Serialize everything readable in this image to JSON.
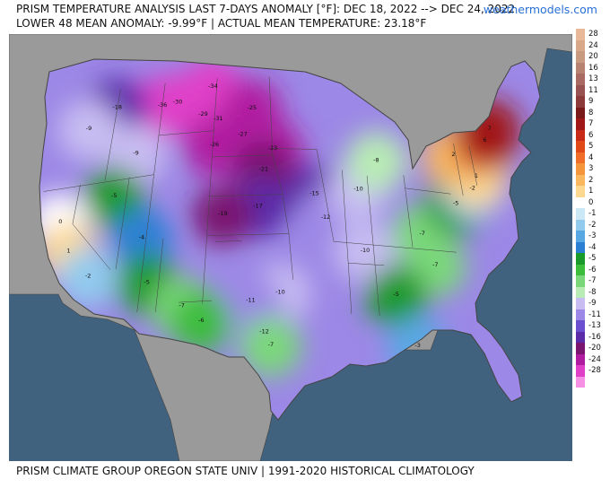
{
  "header": {
    "title_line1": "PRISM TEMPERATURE ANALYSIS LAST 7-DAYS ANOMALY [°F]: DEC 18, 2022 --> DEC 24, 2022",
    "title_line2": "LOWER 48 MEAN ANOMALY: -9.99°F | ACTUAL MEAN TEMPERATURE: 23.18°F",
    "brand": "weathermodels.com"
  },
  "footer": {
    "text": "PRISM CLIMATE GROUP OREGON STATE UNIV | 1991-2020 HISTORICAL CLIMATOLOGY"
  },
  "colors": {
    "ocean": "#41627f",
    "land_outside": "#9a9a9a",
    "border": "#444444"
  },
  "legend": {
    "entries": [
      {
        "label": "28",
        "color": "#e8b898"
      },
      {
        "label": "24",
        "color": "#d8a888"
      },
      {
        "label": "20",
        "color": "#c89a80"
      },
      {
        "label": "16",
        "color": "#b88272"
      },
      {
        "label": "13",
        "color": "#a86a62"
      },
      {
        "label": "11",
        "color": "#985252"
      },
      {
        "label": "9",
        "color": "#8c3a3a"
      },
      {
        "label": "8",
        "color": "#7a1a1a"
      },
      {
        "label": "7",
        "color": "#a01818"
      },
      {
        "label": "6",
        "color": "#c82a18"
      },
      {
        "label": "5",
        "color": "#e04a18"
      },
      {
        "label": "4",
        "color": "#f06e2a"
      },
      {
        "label": "3",
        "color": "#f6963c"
      },
      {
        "label": "2",
        "color": "#f9b860"
      },
      {
        "label": "1",
        "color": "#fcd890"
      },
      {
        "label": "0",
        "color": "#ffffff"
      },
      {
        "label": "-1",
        "color": "#cce8f6"
      },
      {
        "label": "-2",
        "color": "#92cbee"
      },
      {
        "label": "-3",
        "color": "#58a8e4"
      },
      {
        "label": "-4",
        "color": "#2c80d4"
      },
      {
        "label": "-5",
        "color": "#1a9a2a"
      },
      {
        "label": "-6",
        "color": "#3cbd3c"
      },
      {
        "label": "-7",
        "color": "#7ad87a"
      },
      {
        "label": "-8",
        "color": "#b8ecb4"
      },
      {
        "label": "-9",
        "color": "#c8bdf2"
      },
      {
        "label": "-11",
        "color": "#9c88e6"
      },
      {
        "label": "-13",
        "color": "#6a4fcf"
      },
      {
        "label": "-16",
        "color": "#5a2ca8"
      },
      {
        "label": "-20",
        "color": "#7a1670"
      },
      {
        "label": "-24",
        "color": "#b01ca0"
      },
      {
        "label": "-28",
        "color": "#e040c8"
      },
      {
        "label": "",
        "color": "#f590e4"
      }
    ]
  },
  "map": {
    "annotations": [
      {
        "text": "-34",
        "lon": -104.5,
        "lat": 48.3
      },
      {
        "text": "-30",
        "lon": -109.0,
        "lat": 47.3
      },
      {
        "text": "-36",
        "lon": -111.0,
        "lat": 47.2
      },
      {
        "text": "-29",
        "lon": -105.5,
        "lat": 46.2
      },
      {
        "text": "-31",
        "lon": -103.5,
        "lat": 45.8
      },
      {
        "text": "-27",
        "lon": -100.3,
        "lat": 44.5
      },
      {
        "text": "-25",
        "lon": -99.2,
        "lat": 46.5
      },
      {
        "text": "-26",
        "lon": -103.8,
        "lat": 43.8
      },
      {
        "text": "-23",
        "lon": -96.5,
        "lat": 43.4
      },
      {
        "text": "-21",
        "lon": -97.6,
        "lat": 41.8
      },
      {
        "text": "-17",
        "lon": -98.2,
        "lat": 39.0
      },
      {
        "text": "-19",
        "lon": -102.3,
        "lat": 38.5
      },
      {
        "text": "-15",
        "lon": -91.5,
        "lat": 40.0
      },
      {
        "text": "-12",
        "lon": -90.3,
        "lat": 38.2
      },
      {
        "text": "-10",
        "lon": -86.2,
        "lat": 40.5
      },
      {
        "text": "-10",
        "lon": -86.0,
        "lat": 35.8
      },
      {
        "text": "-10",
        "lon": -95.6,
        "lat": 32.4
      },
      {
        "text": "-12",
        "lon": -97.3,
        "lat": 29.4
      },
      {
        "text": "-11",
        "lon": -98.8,
        "lat": 31.8
      },
      {
        "text": "-8",
        "lon": -83.7,
        "lat": 42.8
      },
      {
        "text": "-7",
        "lon": -79.2,
        "lat": 37.5
      },
      {
        "text": "-7",
        "lon": -78.2,
        "lat": 35.2
      },
      {
        "text": "-5",
        "lon": -83.0,
        "lat": 32.6
      },
      {
        "text": "-3",
        "lon": -81.3,
        "lat": 28.8
      },
      {
        "text": "-5",
        "lon": -74.6,
        "lat": 40.2
      },
      {
        "text": "-2",
        "lon": -72.2,
        "lat": 41.6
      },
      {
        "text": "1",
        "lon": -71.4,
        "lat": 42.6
      },
      {
        "text": "2",
        "lon": -73.8,
        "lat": 44.0
      },
      {
        "text": "6",
        "lon": -69.3,
        "lat": 45.6
      },
      {
        "text": "7",
        "lon": -68.3,
        "lat": 46.6
      },
      {
        "text": "-18",
        "lon": -117.0,
        "lat": 47.5
      },
      {
        "text": "-9",
        "lon": -120.3,
        "lat": 46.2
      },
      {
        "text": "-9",
        "lon": -113.6,
        "lat": 43.7
      },
      {
        "text": "-5",
        "lon": -115.5,
        "lat": 40.6
      },
      {
        "text": "0",
        "lon": -121.5,
        "lat": 39.2
      },
      {
        "text": "1",
        "lon": -119.8,
        "lat": 36.8
      },
      {
        "text": "-2",
        "lon": -117.0,
        "lat": 34.6
      },
      {
        "text": "-4",
        "lon": -111.5,
        "lat": 37.1
      },
      {
        "text": "-5",
        "lon": -110.3,
        "lat": 33.6
      },
      {
        "text": "-7",
        "lon": -106.2,
        "lat": 31.6
      },
      {
        "text": "-6",
        "lon": -104.0,
        "lat": 30.4
      },
      {
        "text": "-7",
        "lon": -96.6,
        "lat": 28.4
      }
    ]
  }
}
